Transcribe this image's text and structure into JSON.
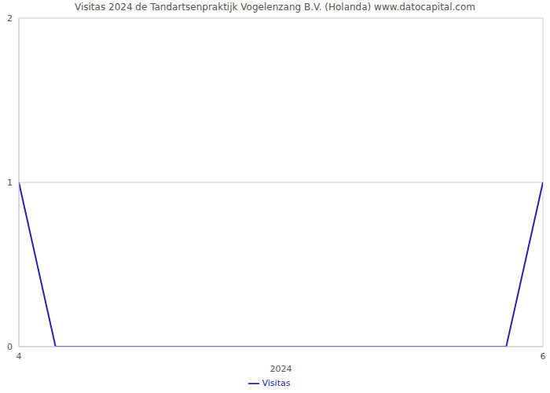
{
  "chart_data": {
    "type": "line",
    "title": "Visitas 2024 de Tandartsenpraktijk Vogelenzang B.V. (Holanda) www.datocapital.com",
    "x_label": "2024",
    "x": [
      4,
      4.14,
      5.86,
      6
    ],
    "series": [
      {
        "name": "Visitas",
        "color": "#2424a8",
        "values": [
          1,
          0,
          0,
          1
        ]
      }
    ],
    "xlim": [
      4,
      6
    ],
    "xticks": [
      4,
      6
    ],
    "ylim": [
      0,
      2
    ],
    "yticks": [
      0,
      1,
      2
    ],
    "grid": true,
    "legend": "bottom"
  }
}
